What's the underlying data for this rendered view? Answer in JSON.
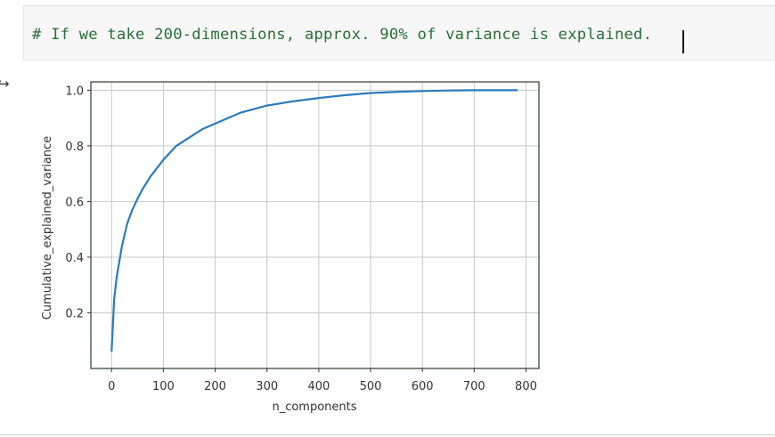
{
  "cell": {
    "code": "# If we take 200-dimensions, approx. 90% of variance is explained."
  },
  "output": {
    "icon": "output-arrow-icon",
    "icon_glyph": "↪"
  },
  "chart_data": {
    "type": "line",
    "xlabel": "n_components",
    "ylabel": "Cumulative_explained_variance",
    "xlim": [
      -40,
      825
    ],
    "ylim": [
      0.0,
      1.03
    ],
    "xticks": [
      0,
      100,
      200,
      300,
      400,
      500,
      600,
      700,
      800
    ],
    "yticks": [
      0.2,
      0.4,
      0.6,
      0.8,
      1.0
    ],
    "xtick_labels": [
      "0",
      "100",
      "200",
      "300",
      "400",
      "500",
      "600",
      "700",
      "800"
    ],
    "ytick_labels": [
      "0.2",
      "0.4",
      "0.6",
      "0.8",
      "1.0"
    ],
    "grid": true,
    "line_color": "#2b7bba",
    "series": [
      {
        "x": [
          0,
          5,
          10,
          20,
          30,
          40,
          50,
          60,
          75,
          100,
          125,
          150,
          175,
          200,
          250,
          300,
          350,
          400,
          450,
          500,
          550,
          600,
          650,
          700,
          750,
          784
        ],
        "y": [
          0.06,
          0.25,
          0.33,
          0.44,
          0.52,
          0.57,
          0.61,
          0.645,
          0.69,
          0.75,
          0.8,
          0.83,
          0.86,
          0.88,
          0.92,
          0.945,
          0.96,
          0.972,
          0.982,
          0.99,
          0.994,
          0.997,
          0.999,
          1.0,
          1.0,
          1.0
        ]
      }
    ]
  }
}
